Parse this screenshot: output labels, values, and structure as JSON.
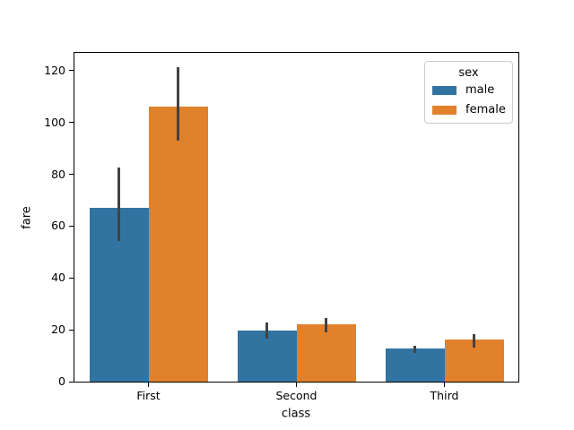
{
  "figure": {
    "background": "#ffffff"
  },
  "chart_data": {
    "type": "bar",
    "title": "",
    "xlabel": "class",
    "ylabel": "fare",
    "categories": [
      "First",
      "Second",
      "Third"
    ],
    "series": [
      {
        "name": "male",
        "color": "#3274a1",
        "values": [
          67.2,
          19.7,
          12.7
        ],
        "ci_low": [
          54.4,
          16.5,
          11.0
        ],
        "ci_high": [
          82.8,
          22.8,
          14.0
        ]
      },
      {
        "name": "female",
        "color": "#e1812c",
        "values": [
          106.1,
          22.0,
          16.1
        ],
        "ci_low": [
          92.9,
          18.9,
          13.3
        ],
        "ci_high": [
          121.4,
          24.5,
          18.2
        ]
      }
    ],
    "error_bar_color": "#424242",
    "ylim": [
      0,
      126.9
    ],
    "yticks": [
      0,
      20,
      40,
      60,
      80,
      100,
      120
    ],
    "grid": false,
    "bar_group_width_fraction": 0.8,
    "legend": {
      "title": "sex",
      "position": "upper right",
      "entries": [
        {
          "label": "male",
          "color": "#3274a1"
        },
        {
          "label": "female",
          "color": "#e1812c"
        }
      ]
    }
  }
}
